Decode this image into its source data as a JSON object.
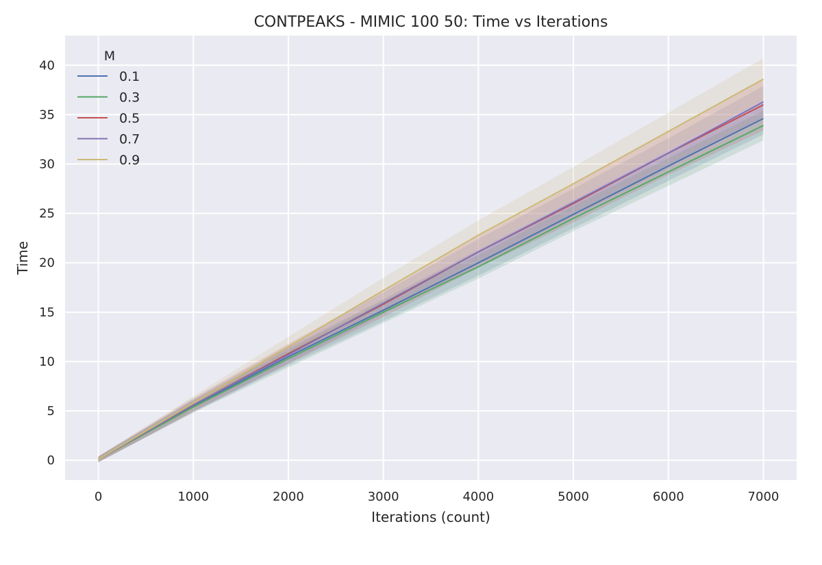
{
  "chart_data": {
    "type": "line",
    "title": "CONTPEAKS - MIMIC 100 50: Time vs Iterations",
    "xlabel": "Iterations (count)",
    "ylabel": "Time",
    "xlim": [
      -350,
      7350
    ],
    "ylim": [
      -2,
      43
    ],
    "xticks": [
      0,
      1000,
      2000,
      3000,
      4000,
      5000,
      6000,
      7000
    ],
    "yticks": [
      0,
      5,
      10,
      15,
      20,
      25,
      30,
      35,
      40
    ],
    "grid": true,
    "background": "#EAEAF2",
    "legend": {
      "title": "M",
      "placement": "top-left"
    },
    "x": [
      0,
      1000,
      2000,
      3000,
      4000,
      5000,
      6000,
      7000
    ],
    "series": [
      {
        "name": "0.1",
        "color": "#4C72B0",
        "values": [
          0.1,
          5.5,
          10.5,
          15.2,
          20.0,
          24.9,
          29.8,
          34.6
        ],
        "band": [
          0.3,
          0.6,
          0.9,
          1.1,
          1.3,
          1.4,
          1.5,
          1.6
        ]
      },
      {
        "name": "0.3",
        "color": "#55A868",
        "values": [
          0.1,
          5.4,
          10.3,
          15.0,
          19.6,
          24.5,
          29.2,
          33.9
        ],
        "band": [
          0.3,
          0.6,
          0.9,
          1.1,
          1.2,
          1.3,
          1.4,
          1.5
        ]
      },
      {
        "name": "0.5",
        "color": "#C44E52",
        "values": [
          0.1,
          5.6,
          10.8,
          15.8,
          21.1,
          26.0,
          31.1,
          36.0
        ],
        "band": [
          0.3,
          0.7,
          1.0,
          1.3,
          1.6,
          1.9,
          2.2,
          2.6
        ]
      },
      {
        "name": "0.7",
        "color": "#8172B2",
        "values": [
          0.1,
          5.6,
          10.7,
          15.9,
          21.1,
          26.1,
          31.1,
          36.3
        ],
        "band": [
          0.3,
          0.6,
          0.9,
          1.1,
          1.3,
          1.4,
          1.5,
          1.6
        ]
      },
      {
        "name": "0.9",
        "color": "#CCB974",
        "values": [
          0.1,
          5.8,
          11.5,
          17.2,
          22.8,
          28.0,
          33.3,
          38.6
        ],
        "band": [
          0.3,
          0.7,
          1.0,
          1.3,
          1.5,
          1.7,
          1.9,
          2.1
        ]
      }
    ]
  }
}
